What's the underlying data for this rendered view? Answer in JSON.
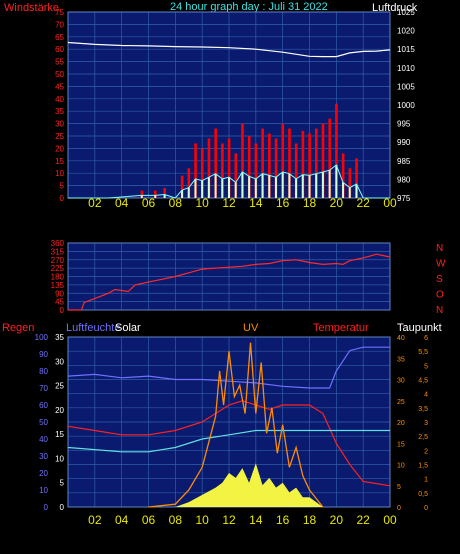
{
  "colors": {
    "background": "#000000",
    "plot_bg": "#0a1a6e",
    "grid": "#2f5fa8",
    "tick_x": "#e8e800",
    "tick_red": "#ff2020",
    "tick_blue": "#6a6aff",
    "tick_cyan": "#40e0e0",
    "tick_orange": "#ff8c00",
    "pressure": "#ffffff",
    "wind": "#ff0000",
    "gust": "#80ffff",
    "gust_fill": "#d0ffd0",
    "direction": "#ff2a2a",
    "humidity": "#7070ff",
    "temperature": "#ff2020",
    "dewpoint": "#60e0e0",
    "uv": "#ff8c00",
    "solar": "#ffff40"
  },
  "header": {
    "left_label": "Windstärke",
    "title": "24 hour graph day : Juli 31 2022",
    "right_label": "Luftdruck"
  },
  "labels3": {
    "regen": "Regen",
    "luftfeuchte": "Luftfeuchte",
    "solar": "Solar",
    "uv": "UV",
    "temperatur": "Temperatur",
    "taupunkt": "Taupunkt"
  },
  "x_ticks": [
    "02",
    "04",
    "06",
    "08",
    "10",
    "12",
    "14",
    "16",
    "18",
    "20",
    "22",
    "00"
  ],
  "chart_data": [
    {
      "type": "line",
      "title": "24 hour graph day : Juli 31 2022",
      "xlabel": "",
      "series": [
        {
          "name": "Windstärke",
          "axis": "left",
          "ylim": [
            0,
            75
          ],
          "left_ticks": [
            "75",
            "70",
            "65",
            "60",
            "55",
            "50",
            "45",
            "40",
            "35",
            "30",
            "25",
            "20",
            "15",
            "10",
            "5",
            "0"
          ],
          "x": [
            0,
            3,
            5.5,
            6.5,
            7.2,
            8.0,
            8.5,
            9.0,
            9.5,
            10.0,
            10.5,
            11.0,
            11.5,
            12.0,
            12.5,
            13.0,
            13.5,
            14.0,
            14.5,
            15.0,
            15.5,
            16.0,
            16.5,
            17.0,
            17.5,
            18.0,
            18.5,
            19.0,
            19.5,
            20.0,
            20.5,
            21.0,
            21.5,
            22.0,
            24.0
          ],
          "y": [
            0,
            0,
            3,
            3,
            4,
            0,
            9,
            12,
            22,
            20,
            24,
            28,
            22,
            24,
            18,
            30,
            25,
            22,
            28,
            26,
            24,
            30,
            28,
            22,
            27,
            26,
            28,
            30,
            32,
            38,
            18,
            12,
            16,
            0,
            0
          ]
        },
        {
          "name": "Luftdruck",
          "axis": "right",
          "ylim": [
            975,
            1025
          ],
          "right_ticks": [
            "1025",
            "1020",
            "1015",
            "1010",
            "1005",
            "1000",
            "995",
            "990",
            "985",
            "980",
            "975"
          ],
          "x": [
            0,
            2,
            4,
            6,
            8,
            10,
            12,
            14,
            16,
            18,
            19,
            20,
            21,
            22,
            23,
            24
          ],
          "y": [
            1016.8,
            1016.3,
            1016.0,
            1015.9,
            1015.7,
            1015.6,
            1015.4,
            1015.0,
            1014.2,
            1013.1,
            1013.0,
            1013.0,
            1014.0,
            1014.4,
            1014.5,
            1014.8
          ]
        }
      ]
    },
    {
      "type": "line",
      "title": "",
      "xlabel": "",
      "ylim": [
        0,
        360
      ],
      "left_ticks": [
        "360",
        "315",
        "270",
        "225",
        "180",
        "135",
        "90",
        "45",
        "0"
      ],
      "right_labels": [
        "N",
        "W",
        "S",
        "O",
        "N"
      ],
      "series": [
        {
          "name": "Windrichtung",
          "x": [
            0,
            1.0,
            1.2,
            3.0,
            3.5,
            4.5,
            5.0,
            6.0,
            7.0,
            8.0,
            9.0,
            10.0,
            11.0,
            12.0,
            13.0,
            14.0,
            15.0,
            16.0,
            17.0,
            18.0,
            19.0,
            20.0,
            20.5,
            21.0,
            22.0,
            23.0,
            24.0
          ],
          "y": [
            0,
            0,
            40,
            90,
            110,
            100,
            135,
            150,
            165,
            180,
            200,
            220,
            225,
            230,
            235,
            245,
            250,
            265,
            270,
            255,
            245,
            250,
            245,
            265,
            280,
            300,
            285
          ]
        }
      ]
    },
    {
      "type": "line",
      "title": "",
      "xlabel": "",
      "series": [
        {
          "name": "Luftfeuchte",
          "axis": "regen_left",
          "ylim": [
            0,
            100
          ],
          "regen_ticks": [
            "100",
            "90",
            "80",
            "70",
            "60",
            "50",
            "40",
            "30",
            "20",
            "10",
            "0"
          ],
          "x": [
            0,
            2,
            4,
            6,
            8,
            10,
            12,
            14,
            16,
            18,
            19.5,
            20.0,
            21.0,
            22.0,
            24.0
          ],
          "y": [
            77,
            78,
            76,
            77,
            75,
            75,
            74,
            73,
            71,
            70,
            70,
            80,
            92,
            94,
            94
          ]
        },
        {
          "name": "Solar",
          "axis": "solar_left",
          "ylim": [
            0,
            35
          ],
          "solar_ticks": [
            "35",
            "30",
            "25",
            "20",
            "15",
            "10",
            "5",
            "0"
          ]
        },
        {
          "name": "Temperatur",
          "axis": "temp_right",
          "ylim": [
            0,
            40
          ],
          "temp_ticks": [
            "40",
            "35",
            "30",
            "25",
            "20",
            "15",
            "10",
            "5",
            "0"
          ],
          "x": [
            0,
            2,
            4,
            6,
            8,
            10,
            11,
            12,
            13,
            14,
            15,
            16,
            18,
            19,
            20,
            21,
            22,
            24
          ],
          "y": [
            19,
            18,
            17,
            17,
            18,
            20,
            22,
            24,
            25,
            24,
            23,
            24,
            24,
            22,
            15,
            10,
            6,
            5
          ]
        },
        {
          "name": "Taupunkt",
          "axis": "temp_right",
          "ylim": [
            0,
            40
          ],
          "x": [
            0,
            2,
            4,
            6,
            8,
            10,
            12,
            14,
            16,
            18,
            20,
            22,
            24
          ],
          "y": [
            14,
            13.5,
            13,
            13,
            14,
            16,
            17,
            18,
            18,
            18,
            18,
            18,
            18
          ]
        },
        {
          "name": "UV",
          "axis": "uv_right",
          "ylim": [
            0,
            6
          ],
          "uv_ticks": [
            "6",
            "5,5",
            "5",
            "4,5",
            "4",
            "3,5",
            "3",
            "2,5",
            "2",
            "1,5",
            "1",
            "0,5",
            "0"
          ],
          "x": [
            6,
            8,
            9,
            10,
            10.5,
            11,
            11.3,
            11.6,
            12,
            12.4,
            12.8,
            13.2,
            13.6,
            14.0,
            14.4,
            14.8,
            15.2,
            15.6,
            16.0,
            16.5,
            17.0,
            17.5,
            18.0,
            18.5,
            19.0
          ],
          "y": [
            0,
            0.1,
            0.6,
            1.4,
            2.3,
            3.2,
            4.8,
            3.6,
            5.5,
            3.9,
            4.3,
            3.3,
            5.8,
            3.3,
            5.1,
            2.6,
            3.5,
            1.9,
            2.9,
            1.4,
            2.1,
            1.1,
            0.6,
            0.3,
            0
          ]
        },
        {
          "name": "Solar",
          "axis": "solar_left",
          "ylim": [
            0,
            35
          ],
          "x": [
            6,
            8,
            9,
            10,
            11,
            11.5,
            12,
            12.5,
            13,
            13.5,
            14,
            14.5,
            15,
            15.5,
            16,
            16.5,
            17,
            17.5,
            18,
            18.5,
            19
          ],
          "y": [
            0,
            0,
            1,
            2.5,
            4,
            5,
            7,
            6,
            8,
            5,
            9,
            4.5,
            6,
            4,
            5,
            3,
            4,
            2,
            2,
            1,
            0
          ]
        }
      ]
    }
  ]
}
